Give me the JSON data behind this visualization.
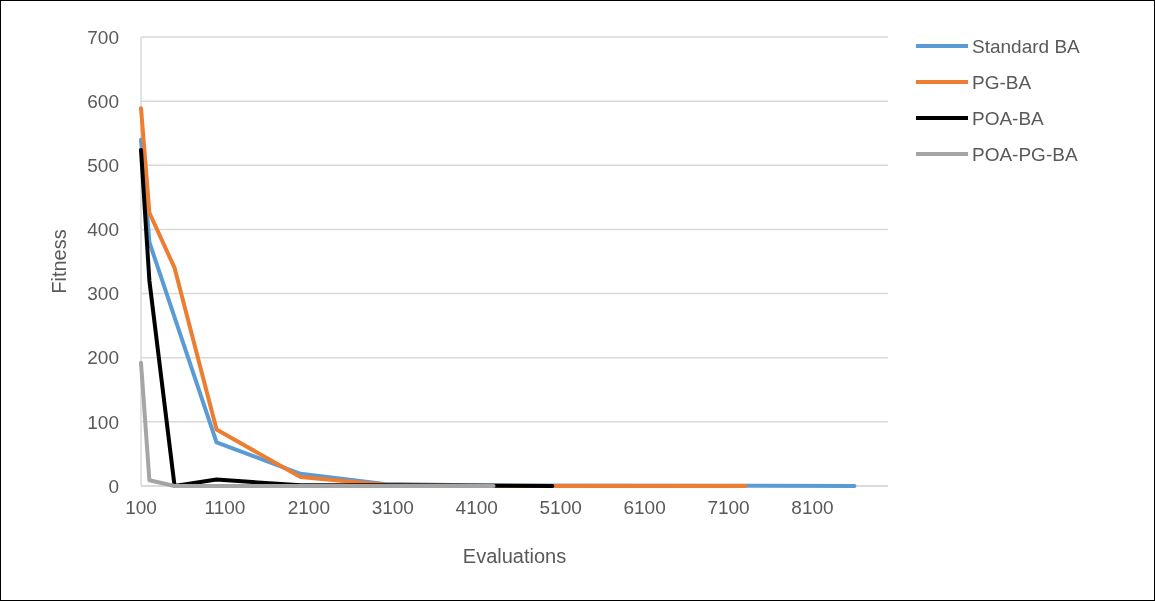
{
  "chart_data": {
    "type": "line",
    "xlabel": "Evaluations",
    "ylabel": "Fitness",
    "xlim": [
      100,
      9000
    ],
    "xticks": [
      100,
      1100,
      2100,
      3100,
      4100,
      5100,
      6100,
      7100,
      8100
    ],
    "ylim": [
      0,
      700
    ],
    "yticks": [
      0,
      100,
      200,
      300,
      400,
      500,
      600,
      700
    ],
    "grid": "y",
    "legend": "right",
    "marker": "none",
    "line_style": "solid",
    "series": [
      {
        "name": "Standard BA",
        "color": "#5b9bd5",
        "x": [
          100,
          200,
          1000,
          2000,
          3000,
          4000,
          8600
        ],
        "values": [
          540,
          380,
          68,
          19,
          3,
          1,
          0
        ]
      },
      {
        "name": "PG-BA",
        "color": "#ed7d31",
        "x": [
          100,
          200,
          500,
          1000,
          2000,
          3000,
          4000,
          7300
        ],
        "values": [
          589,
          426,
          340,
          88,
          14,
          2,
          0,
          0
        ]
      },
      {
        "name": "POA-BA",
        "color": "#000000",
        "x": [
          100,
          200,
          500,
          1000,
          2000,
          3000,
          5000
        ],
        "values": [
          524,
          320,
          0,
          10,
          1,
          1,
          0
        ]
      },
      {
        "name": "POA-PG-BA",
        "color": "#a5a5a5",
        "x": [
          100,
          200,
          500,
          4300
        ],
        "values": [
          192,
          9,
          0,
          0
        ]
      }
    ]
  }
}
